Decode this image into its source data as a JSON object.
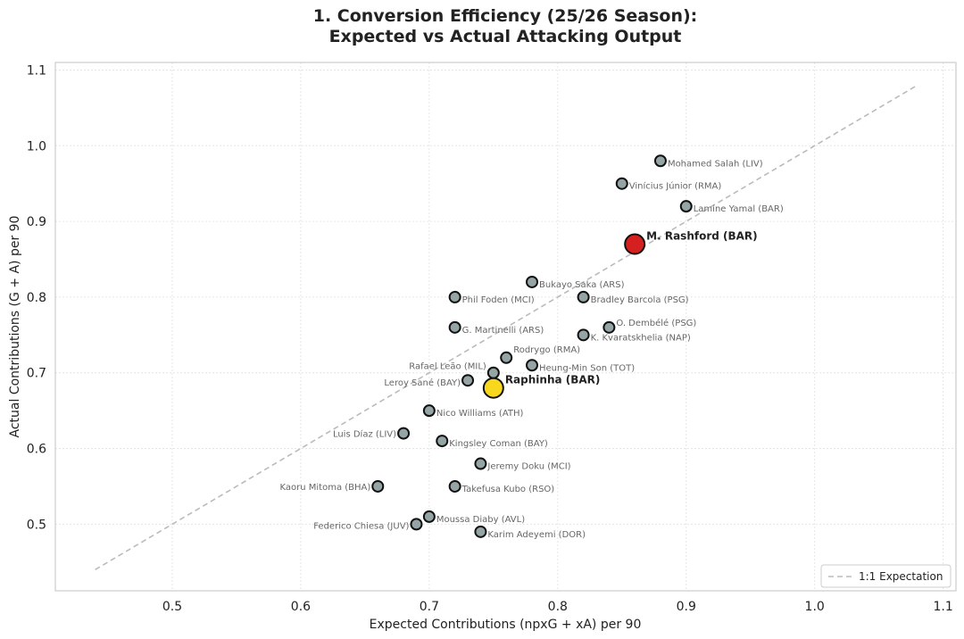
{
  "chart_data": {
    "type": "scatter",
    "title": "1. Conversion Efficiency (25/26 Season):",
    "subtitle": "Expected vs Actual Attacking Output",
    "xlabel": "Expected Contributions (npxG + xA) per 90",
    "ylabel": "Actual Contributions (G + A) per 90",
    "xlim": [
      0.409,
      1.11
    ],
    "ylim": [
      0.412,
      1.11
    ],
    "xticks": [
      0.5,
      0.6,
      0.7,
      0.8,
      0.9,
      1.0,
      1.1
    ],
    "xtick_labels": [
      "0.5",
      "0.6",
      "0.7",
      "0.8",
      "0.9",
      "1.0",
      "1.1"
    ],
    "yticks": [
      0.5,
      0.6,
      0.7,
      0.8,
      0.9,
      1.0,
      1.1
    ],
    "ytick_labels": [
      "0.5",
      "0.6",
      "0.7",
      "0.8",
      "0.9",
      "1.0",
      "1.1"
    ],
    "grid": true,
    "reference_line": {
      "label": "1:1 Expectation",
      "from": [
        0.44,
        0.44
      ],
      "to": [
        1.08,
        1.08
      ],
      "color": "#bbbbbb"
    },
    "legend_position": "bottom-right",
    "colors": {
      "default": "#95a5a6",
      "rashford": "#d62020",
      "raphinha": "#f9d71c"
    },
    "points": [
      {
        "name": "Mohamed Salah (LIV)",
        "x": 0.88,
        "y": 0.98
      },
      {
        "name": "Vinícius Júnior (RMA)",
        "x": 0.85,
        "y": 0.95
      },
      {
        "name": "Lamine Yamal (BAR)",
        "x": 0.9,
        "y": 0.92
      },
      {
        "name": "Bukayo Saka (ARS)",
        "x": 0.78,
        "y": 0.82
      },
      {
        "name": "Phil Foden (MCI)",
        "x": 0.72,
        "y": 0.8
      },
      {
        "name": "Bradley Barcola (PSG)",
        "x": 0.82,
        "y": 0.8
      },
      {
        "name": "G. Martinelli (ARS)",
        "x": 0.72,
        "y": 0.76
      },
      {
        "name": "O. Dembélé (PSG)",
        "x": 0.84,
        "y": 0.76
      },
      {
        "name": "K. Kvaratskhelia (NAP)",
        "x": 0.82,
        "y": 0.75
      },
      {
        "name": "Rodrygo (RMA)",
        "x": 0.76,
        "y": 0.72
      },
      {
        "name": "Heung-Min Son (TOT)",
        "x": 0.78,
        "y": 0.71
      },
      {
        "name": "Rafael Leão (MIL)",
        "x": 0.75,
        "y": 0.7
      },
      {
        "name": "Leroy Sané (BAY)",
        "x": 0.73,
        "y": 0.69
      },
      {
        "name": "Nico Williams (ATH)",
        "x": 0.7,
        "y": 0.65
      },
      {
        "name": "Luis Díaz (LIV)",
        "x": 0.68,
        "y": 0.62
      },
      {
        "name": "Kingsley Coman (BAY)",
        "x": 0.71,
        "y": 0.61
      },
      {
        "name": "Jeremy Doku (MCI)",
        "x": 0.74,
        "y": 0.58
      },
      {
        "name": "Kaoru Mitoma (BHA)",
        "x": 0.66,
        "y": 0.55
      },
      {
        "name": "Takefusa Kubo (RSO)",
        "x": 0.72,
        "y": 0.55
      },
      {
        "name": "Moussa Diaby (AVL)",
        "x": 0.7,
        "y": 0.51
      },
      {
        "name": "Federico Chiesa (JUV)",
        "x": 0.69,
        "y": 0.5
      },
      {
        "name": "Karim Adeyemi (DOR)",
        "x": 0.74,
        "y": 0.49
      }
    ],
    "highlights": [
      {
        "name": "M. Rashford (BAR)",
        "x": 0.86,
        "y": 0.87,
        "color_key": "rashford"
      },
      {
        "name": "Raphinha (BAR)",
        "x": 0.75,
        "y": 0.68,
        "color_key": "raphinha"
      }
    ]
  }
}
